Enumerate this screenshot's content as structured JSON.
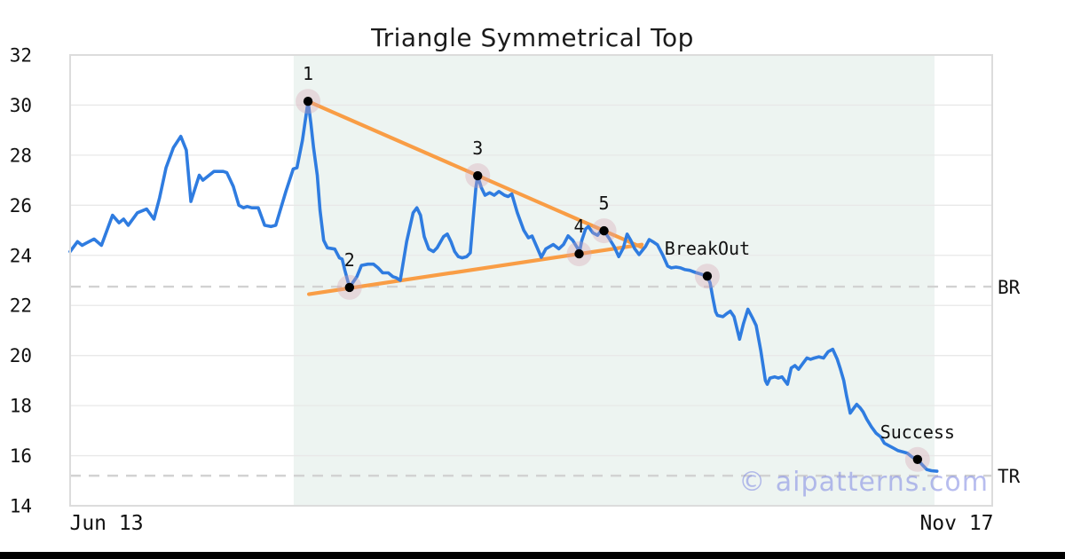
{
  "page": {
    "title": "Triangle Symmetrical Top",
    "watermark": "© aipatterns.com"
  },
  "chart_data": {
    "type": "line",
    "title": "Triangle Symmetrical Top",
    "xlabel": "",
    "ylabel": "",
    "ylim": [
      14,
      32
    ],
    "yticks": [
      32,
      30,
      28,
      26,
      24,
      22,
      20,
      18,
      16,
      14
    ],
    "xticks": [
      {
        "label": "Jun 13",
        "x": 0.0395
      },
      {
        "label": "Nov 17",
        "x": 0.9615
      }
    ],
    "grid": true,
    "legend": false,
    "series": [
      {
        "name": "price",
        "color": "#2f7ce0",
        "points": [
          [
            0.0,
            24.15
          ],
          [
            0.008,
            24.55
          ],
          [
            0.013,
            24.4
          ],
          [
            0.018,
            24.5
          ],
          [
            0.026,
            24.65
          ],
          [
            0.034,
            24.4
          ],
          [
            0.046,
            25.6
          ],
          [
            0.053,
            25.3
          ],
          [
            0.058,
            25.45
          ],
          [
            0.063,
            25.2
          ],
          [
            0.073,
            25.7
          ],
          [
            0.083,
            25.85
          ],
          [
            0.091,
            25.45
          ],
          [
            0.097,
            26.3
          ],
          [
            0.104,
            27.5
          ],
          [
            0.112,
            28.3
          ],
          [
            0.12,
            28.75
          ],
          [
            0.126,
            28.2
          ],
          [
            0.131,
            26.15
          ],
          [
            0.14,
            27.2
          ],
          [
            0.144,
            27.0
          ],
          [
            0.156,
            27.35
          ],
          [
            0.166,
            27.35
          ],
          [
            0.17,
            27.3
          ],
          [
            0.177,
            26.75
          ],
          [
            0.183,
            26.0
          ],
          [
            0.188,
            25.9
          ],
          [
            0.192,
            25.95
          ],
          [
            0.197,
            25.9
          ],
          [
            0.204,
            25.9
          ],
          [
            0.211,
            25.2
          ],
          [
            0.218,
            25.15
          ],
          [
            0.223,
            25.2
          ],
          [
            0.234,
            26.55
          ],
          [
            0.242,
            27.45
          ],
          [
            0.246,
            27.5
          ],
          [
            0.252,
            28.6
          ],
          [
            0.258,
            30.15
          ],
          [
            0.261,
            29.3
          ],
          [
            0.264,
            28.3
          ],
          [
            0.268,
            27.2
          ],
          [
            0.271,
            25.8
          ],
          [
            0.275,
            24.6
          ],
          [
            0.279,
            24.3
          ],
          [
            0.287,
            24.25
          ],
          [
            0.292,
            23.9
          ],
          [
            0.295,
            23.85
          ],
          [
            0.298,
            23.4
          ],
          [
            0.303,
            22.72
          ],
          [
            0.311,
            23.15
          ],
          [
            0.316,
            23.6
          ],
          [
            0.323,
            23.65
          ],
          [
            0.329,
            23.65
          ],
          [
            0.334,
            23.5
          ],
          [
            0.339,
            23.3
          ],
          [
            0.345,
            23.3
          ],
          [
            0.35,
            23.15
          ],
          [
            0.354,
            23.1
          ],
          [
            0.358,
            23.0
          ],
          [
            0.365,
            24.55
          ],
          [
            0.372,
            25.7
          ],
          [
            0.376,
            25.9
          ],
          [
            0.38,
            25.6
          ],
          [
            0.384,
            24.75
          ],
          [
            0.389,
            24.25
          ],
          [
            0.394,
            24.15
          ],
          [
            0.398,
            24.3
          ],
          [
            0.405,
            24.75
          ],
          [
            0.409,
            24.85
          ],
          [
            0.413,
            24.55
          ],
          [
            0.417,
            24.15
          ],
          [
            0.421,
            23.95
          ],
          [
            0.425,
            23.9
          ],
          [
            0.43,
            23.95
          ],
          [
            0.434,
            24.1
          ],
          [
            0.437,
            25.4
          ],
          [
            0.44,
            26.7
          ],
          [
            0.442,
            27.18
          ],
          [
            0.446,
            26.7
          ],
          [
            0.45,
            26.4
          ],
          [
            0.455,
            26.5
          ],
          [
            0.46,
            26.4
          ],
          [
            0.465,
            26.55
          ],
          [
            0.471,
            26.4
          ],
          [
            0.475,
            26.35
          ],
          [
            0.479,
            26.45
          ],
          [
            0.485,
            25.7
          ],
          [
            0.492,
            25.0
          ],
          [
            0.497,
            24.7
          ],
          [
            0.501,
            24.77
          ],
          [
            0.506,
            24.35
          ],
          [
            0.511,
            23.92
          ],
          [
            0.516,
            24.26
          ],
          [
            0.524,
            24.43
          ],
          [
            0.53,
            24.26
          ],
          [
            0.535,
            24.43
          ],
          [
            0.54,
            24.78
          ],
          [
            0.545,
            24.6
          ],
          [
            0.55,
            24.3
          ],
          [
            0.552,
            24.06
          ],
          [
            0.555,
            24.6
          ],
          [
            0.559,
            25.05
          ],
          [
            0.562,
            25.15
          ],
          [
            0.567,
            24.9
          ],
          [
            0.572,
            24.8
          ],
          [
            0.576,
            25.0
          ],
          [
            0.579,
            24.98
          ],
          [
            0.585,
            24.65
          ],
          [
            0.59,
            24.35
          ],
          [
            0.595,
            23.95
          ],
          [
            0.6,
            24.3
          ],
          [
            0.604,
            24.85
          ],
          [
            0.608,
            24.6
          ],
          [
            0.612,
            24.28
          ],
          [
            0.617,
            24.03
          ],
          [
            0.624,
            24.35
          ],
          [
            0.628,
            24.63
          ],
          [
            0.633,
            24.52
          ],
          [
            0.637,
            24.42
          ],
          [
            0.643,
            23.99
          ],
          [
            0.648,
            23.57
          ],
          [
            0.652,
            23.5
          ],
          [
            0.657,
            23.53
          ],
          [
            0.662,
            23.5
          ],
          [
            0.667,
            23.43
          ],
          [
            0.672,
            23.4
          ],
          [
            0.678,
            23.32
          ],
          [
            0.684,
            23.25
          ],
          [
            0.691,
            23.17
          ],
          [
            0.694,
            22.9
          ],
          [
            0.697,
            22.3
          ],
          [
            0.7,
            21.75
          ],
          [
            0.702,
            21.6
          ],
          [
            0.708,
            21.55
          ],
          [
            0.712,
            21.67
          ],
          [
            0.716,
            21.77
          ],
          [
            0.72,
            21.55
          ],
          [
            0.726,
            20.65
          ],
          [
            0.73,
            21.25
          ],
          [
            0.735,
            21.85
          ],
          [
            0.74,
            21.5
          ],
          [
            0.744,
            21.2
          ],
          [
            0.749,
            20.2
          ],
          [
            0.754,
            19.0
          ],
          [
            0.756,
            18.85
          ],
          [
            0.759,
            19.1
          ],
          [
            0.764,
            19.15
          ],
          [
            0.768,
            19.1
          ],
          [
            0.772,
            19.15
          ],
          [
            0.775,
            19.0
          ],
          [
            0.778,
            18.85
          ],
          [
            0.782,
            19.5
          ],
          [
            0.786,
            19.6
          ],
          [
            0.79,
            19.45
          ],
          [
            0.795,
            19.7
          ],
          [
            0.799,
            19.9
          ],
          [
            0.803,
            19.85
          ],
          [
            0.807,
            19.9
          ],
          [
            0.812,
            19.95
          ],
          [
            0.817,
            19.9
          ],
          [
            0.822,
            20.15
          ],
          [
            0.827,
            20.25
          ],
          [
            0.832,
            19.85
          ],
          [
            0.835,
            19.5
          ],
          [
            0.839,
            19.0
          ],
          [
            0.842,
            18.4
          ],
          [
            0.846,
            17.7
          ],
          [
            0.85,
            17.9
          ],
          [
            0.853,
            18.05
          ],
          [
            0.857,
            17.9
          ],
          [
            0.86,
            17.75
          ],
          [
            0.864,
            17.45
          ],
          [
            0.869,
            17.15
          ],
          [
            0.874,
            16.9
          ],
          [
            0.879,
            16.75
          ],
          [
            0.883,
            16.5
          ],
          [
            0.888,
            16.4
          ],
          [
            0.893,
            16.3
          ],
          [
            0.898,
            16.2
          ],
          [
            0.903,
            16.15
          ],
          [
            0.908,
            16.1
          ],
          [
            0.913,
            15.95
          ],
          [
            0.919,
            15.85
          ],
          [
            0.925,
            15.6
          ],
          [
            0.929,
            15.45
          ],
          [
            0.934,
            15.4
          ],
          [
            0.94,
            15.38
          ]
        ]
      }
    ],
    "pattern": {
      "name": "Triangle Symmetrical Top",
      "region": {
        "x1": 0.2425,
        "x2": 0.9374,
        "color": "#edf4f1"
      },
      "points": [
        {
          "label": "1",
          "x": 0.258,
          "value": 30.15
        },
        {
          "label": "2",
          "x": 0.303,
          "value": 22.72
        },
        {
          "label": "3",
          "x": 0.442,
          "value": 27.18
        },
        {
          "label": "4",
          "x": 0.552,
          "value": 24.06
        },
        {
          "label": "5",
          "x": 0.579,
          "value": 24.98
        },
        {
          "label": "BreakOut",
          "x": 0.691,
          "value": 23.17
        },
        {
          "label": "Success",
          "x": 0.919,
          "value": 15.85
        }
      ],
      "trendlines": [
        {
          "name": "upper",
          "x1": 0.258,
          "v1": 30.15,
          "x2": 0.62,
          "v2": 24.32
        },
        {
          "name": "lower",
          "x1": 0.259,
          "v1": 22.45,
          "x2": 0.62,
          "v2": 24.43
        }
      ],
      "levels": [
        {
          "label": "BR",
          "value": 22.75
        },
        {
          "label": "TR",
          "value": 15.2
        }
      ]
    }
  },
  "colors": {
    "price_line": "#2f7ce0",
    "trendline": "#f99d45",
    "marker_dot": "#000000",
    "marker_halo": "rgba(216,163,178,0.35)",
    "region_fill": "#edf4f1",
    "gridline": "#e8e8e8",
    "plot_border": "#dcdcdc",
    "level_dash": "#d2d2d2",
    "label_text": "#111111",
    "watermark": "rgba(125,135,225,0.55)"
  }
}
